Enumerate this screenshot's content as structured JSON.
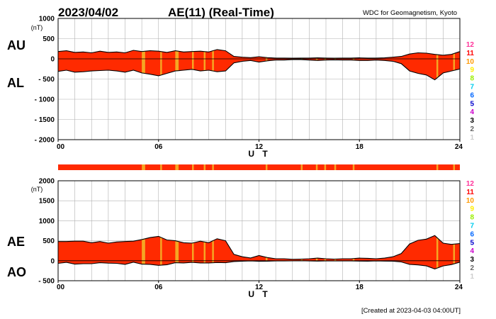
{
  "header": {
    "date": "2023/04/02",
    "title": "AE(11) (Real-Time)",
    "organization": "WDC for Geomagnetism, Kyoto"
  },
  "footer": {
    "created": "[Created at 2023-04-03 04:00UT]"
  },
  "x_axis": {
    "label": "U T",
    "ticks": [
      "00",
      "06",
      "12",
      "18",
      "24"
    ],
    "range_hours": [
      0,
      24
    ]
  },
  "panel_top": {
    "left_labels": [
      "AU",
      "AL"
    ],
    "unit": "(nT)"
  },
  "panel_bottom": {
    "left_labels": [
      "AE",
      "AO"
    ],
    "unit": "(nT)"
  },
  "legend": {
    "stations": [
      {
        "label": "12",
        "color": "#ff3399"
      },
      {
        "label": "11",
        "color": "#ff0000"
      },
      {
        "label": "10",
        "color": "#ff9900"
      },
      {
        "label": "9",
        "color": "#ffee00"
      },
      {
        "label": "8",
        "color": "#99ee00"
      },
      {
        "label": "7",
        "color": "#00ccee"
      },
      {
        "label": "6",
        "color": "#0066ff"
      },
      {
        "label": "5",
        "color": "#0000cc"
      },
      {
        "label": "4",
        "color": "#cc00cc"
      },
      {
        "label": "3",
        "color": "#000000"
      },
      {
        "label": "2",
        "color": "#666666"
      },
      {
        "label": "1",
        "color": "#cccccc"
      }
    ]
  },
  "colors": {
    "fill_11": "#ff2a00",
    "fill_10": "#f5a623",
    "outline": "#000000",
    "grid": "#b0b0b0"
  },
  "chart_data": [
    {
      "type": "area",
      "panel": "top",
      "title": "AU / AL",
      "ylabel": "(nT)",
      "ylim": [
        -2000,
        1000
      ],
      "yticks": [
        1000,
        500,
        0,
        -500,
        -1000,
        -1500,
        -2000
      ],
      "ytick_labels": [
        "1000",
        "500",
        "0",
        "- 500",
        "- 1000",
        "- 1500",
        "- 2000"
      ],
      "grid": true,
      "x_hours": [
        0,
        0.5,
        1,
        1.5,
        2,
        2.5,
        3,
        3.5,
        4,
        4.5,
        5,
        5.5,
        6,
        6.5,
        7,
        7.5,
        8,
        8.5,
        9,
        9.5,
        10,
        10.5,
        11,
        11.5,
        12,
        12.5,
        13,
        13.5,
        14,
        14.5,
        15,
        15.5,
        16,
        16.5,
        17,
        17.5,
        18,
        18.5,
        19,
        19.5,
        20,
        20.5,
        21,
        21.5,
        22,
        22.5,
        23,
        23.5,
        24
      ],
      "series": [
        {
          "name": "AU",
          "values": [
            180,
            200,
            160,
            170,
            150,
            190,
            160,
            170,
            150,
            210,
            180,
            200,
            190,
            160,
            200,
            170,
            180,
            190,
            170,
            230,
            200,
            60,
            40,
            30,
            50,
            30,
            20,
            20,
            15,
            20,
            20,
            25,
            20,
            15,
            20,
            20,
            25,
            20,
            20,
            25,
            40,
            60,
            120,
            150,
            140,
            110,
            90,
            110,
            180
          ]
        },
        {
          "name": "AL",
          "values": [
            -310,
            -280,
            -330,
            -320,
            -300,
            -290,
            -280,
            -300,
            -330,
            -280,
            -350,
            -380,
            -420,
            -360,
            -300,
            -280,
            -260,
            -300,
            -280,
            -320,
            -300,
            -100,
            -60,
            -40,
            -80,
            -50,
            -30,
            -30,
            -20,
            -20,
            -30,
            -40,
            -30,
            -25,
            -30,
            -30,
            -40,
            -40,
            -30,
            -40,
            -60,
            -120,
            -300,
            -360,
            -400,
            -520,
            -350,
            -300,
            -250
          ]
        }
      ],
      "station_count_bands": [
        {
          "start_hour": 5.0,
          "end_hour": 5.2,
          "stations": "10"
        },
        {
          "start_hour": 6.1,
          "end_hour": 6.2,
          "stations": "10"
        },
        {
          "start_hour": 7.0,
          "end_hour": 7.2,
          "stations": "10"
        },
        {
          "start_hour": 8.0,
          "end_hour": 8.1,
          "stations": "10"
        },
        {
          "start_hour": 8.7,
          "end_hour": 8.8,
          "stations": "10"
        },
        {
          "start_hour": 9.2,
          "end_hour": 9.3,
          "stations": "10"
        },
        {
          "start_hour": 12.4,
          "end_hour": 12.5,
          "stations": "10"
        },
        {
          "start_hour": 14.5,
          "end_hour": 14.6,
          "stations": "10"
        },
        {
          "start_hour": 15.4,
          "end_hour": 15.5,
          "stations": "10"
        },
        {
          "start_hour": 15.9,
          "end_hour": 16.0,
          "stations": "10"
        },
        {
          "start_hour": 16.5,
          "end_hour": 16.6,
          "stations": "10"
        },
        {
          "start_hour": 17.6,
          "end_hour": 17.7,
          "stations": "10"
        },
        {
          "start_hour": 22.6,
          "end_hour": 22.7,
          "stations": "10"
        },
        {
          "start_hour": 23.6,
          "end_hour": 23.7,
          "stations": "10"
        }
      ]
    },
    {
      "type": "area",
      "panel": "bottom",
      "title": "AE / AO",
      "ylabel": "(nT)",
      "ylim": [
        -500,
        2000
      ],
      "yticks": [
        2000,
        1500,
        1000,
        500,
        0,
        -500
      ],
      "ytick_labels": [
        "2000",
        "1500",
        "1000",
        "500",
        "0",
        "- 500"
      ],
      "grid": true,
      "x_hours": [
        0,
        0.5,
        1,
        1.5,
        2,
        2.5,
        3,
        3.5,
        4,
        4.5,
        5,
        5.5,
        6,
        6.5,
        7,
        7.5,
        8,
        8.5,
        9,
        9.5,
        10,
        10.5,
        11,
        11.5,
        12,
        12.5,
        13,
        13.5,
        14,
        14.5,
        15,
        15.5,
        16,
        16.5,
        17,
        17.5,
        18,
        18.5,
        19,
        19.5,
        20,
        20.5,
        21,
        21.5,
        22,
        22.5,
        23,
        23.5,
        24
      ],
      "series": [
        {
          "name": "AE",
          "values": [
            480,
            480,
            490,
            490,
            450,
            480,
            440,
            470,
            480,
            490,
            530,
            580,
            610,
            520,
            500,
            450,
            440,
            490,
            450,
            550,
            500,
            160,
            100,
            70,
            130,
            80,
            50,
            50,
            35,
            40,
            50,
            65,
            50,
            40,
            50,
            50,
            65,
            60,
            50,
            65,
            100,
            180,
            420,
            510,
            540,
            630,
            440,
            410,
            430
          ]
        },
        {
          "name": "AO",
          "values": [
            -65,
            -40,
            -85,
            -75,
            -75,
            -50,
            -60,
            -65,
            -90,
            -35,
            -85,
            -90,
            -115,
            -100,
            -50,
            -55,
            -40,
            -55,
            -55,
            -45,
            -50,
            -20,
            -10,
            -5,
            -15,
            -10,
            -5,
            -5,
            -3,
            0,
            -5,
            -8,
            -5,
            -5,
            -5,
            -5,
            -8,
            -10,
            -5,
            -8,
            -10,
            -30,
            -90,
            -105,
            -130,
            -205,
            -130,
            -95,
            -35
          ]
        }
      ],
      "station_count_bands": [
        {
          "start_hour": 5.0,
          "end_hour": 5.2,
          "stations": "10"
        },
        {
          "start_hour": 6.1,
          "end_hour": 6.2,
          "stations": "10"
        },
        {
          "start_hour": 7.0,
          "end_hour": 7.2,
          "stations": "10"
        },
        {
          "start_hour": 8.0,
          "end_hour": 8.1,
          "stations": "10"
        },
        {
          "start_hour": 8.7,
          "end_hour": 8.8,
          "stations": "10"
        },
        {
          "start_hour": 9.2,
          "end_hour": 9.3,
          "stations": "10"
        },
        {
          "start_hour": 12.4,
          "end_hour": 12.5,
          "stations": "10"
        },
        {
          "start_hour": 14.5,
          "end_hour": 14.6,
          "stations": "10"
        },
        {
          "start_hour": 15.4,
          "end_hour": 15.5,
          "stations": "10"
        },
        {
          "start_hour": 15.9,
          "end_hour": 16.0,
          "stations": "10"
        },
        {
          "start_hour": 16.5,
          "end_hour": 16.6,
          "stations": "10"
        },
        {
          "start_hour": 17.6,
          "end_hour": 17.7,
          "stations": "10"
        },
        {
          "start_hour": 22.6,
          "end_hour": 22.7,
          "stations": "10"
        },
        {
          "start_hour": 23.6,
          "end_hour": 23.7,
          "stations": "10"
        }
      ]
    }
  ]
}
